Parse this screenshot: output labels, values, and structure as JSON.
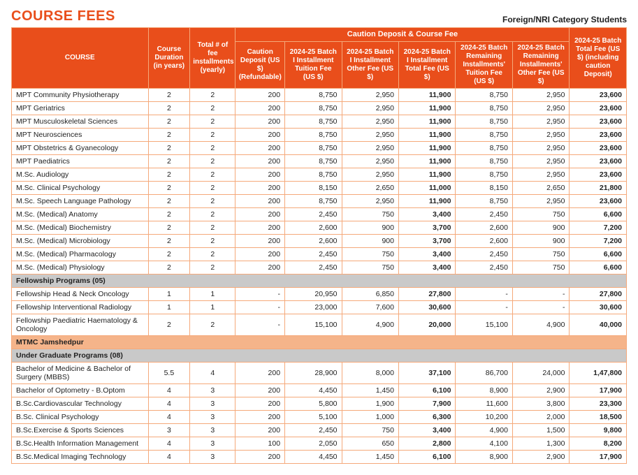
{
  "page": {
    "title": "COURSE FEES",
    "subtitle": "Foreign/NRI Category Students"
  },
  "headers": {
    "course": "COURSE",
    "duration": "Course Duration (in years)",
    "installments": "Total # of fee installments (yearly)",
    "span_caution": "Caution Deposit & Course Fee",
    "caution": "Caution Deposit (US $) (Refundable)",
    "tuition1": "2024-25 Batch I Installment Tuition Fee (US $)",
    "other1": "2024-25 Batch I Installment Other Fee (US $)",
    "total1": "2024-25 Batch I Installment Total Fee (US $)",
    "rem_tuition": "2024-25 Batch Remaining Installments' Tuition Fee (US $)",
    "rem_other": "2024-25 Batch Remaining Installments' Other Fee (US $)",
    "grand": "2024-25 Batch Total Fee (US $) (including caution Deposit)"
  },
  "rows": [
    {
      "type": "data",
      "course": "MPT Community Physiotherapy",
      "dur": "2",
      "inst": "2",
      "caution": "200",
      "t1": "8,750",
      "o1": "2,950",
      "tot1": "11,900",
      "rt": "8,750",
      "ro": "2,950",
      "grand": "23,600"
    },
    {
      "type": "data",
      "course": "MPT Geriatrics",
      "dur": "2",
      "inst": "2",
      "caution": "200",
      "t1": "8,750",
      "o1": "2,950",
      "tot1": "11,900",
      "rt": "8,750",
      "ro": "2,950",
      "grand": "23,600"
    },
    {
      "type": "data",
      "course": "MPT Musculoskeletal Sciences",
      "dur": "2",
      "inst": "2",
      "caution": "200",
      "t1": "8,750",
      "o1": "2,950",
      "tot1": "11,900",
      "rt": "8,750",
      "ro": "2,950",
      "grand": "23,600"
    },
    {
      "type": "data",
      "course": "MPT Neurosciences",
      "dur": "2",
      "inst": "2",
      "caution": "200",
      "t1": "8,750",
      "o1": "2,950",
      "tot1": "11,900",
      "rt": "8,750",
      "ro": "2,950",
      "grand": "23,600"
    },
    {
      "type": "data",
      "course": "MPT Obstetrics & Gyanecology",
      "dur": "2",
      "inst": "2",
      "caution": "200",
      "t1": "8,750",
      "o1": "2,950",
      "tot1": "11,900",
      "rt": "8,750",
      "ro": "2,950",
      "grand": "23,600"
    },
    {
      "type": "data",
      "course": "MPT Paediatrics",
      "dur": "2",
      "inst": "2",
      "caution": "200",
      "t1": "8,750",
      "o1": "2,950",
      "tot1": "11,900",
      "rt": "8,750",
      "ro": "2,950",
      "grand": "23,600"
    },
    {
      "type": "data",
      "course": "M.Sc. Audiology",
      "dur": "2",
      "inst": "2",
      "caution": "200",
      "t1": "8,750",
      "o1": "2,950",
      "tot1": "11,900",
      "rt": "8,750",
      "ro": "2,950",
      "grand": "23,600"
    },
    {
      "type": "data",
      "course": "M.Sc. Clinical Psychology",
      "dur": "2",
      "inst": "2",
      "caution": "200",
      "t1": "8,150",
      "o1": "2,650",
      "tot1": "11,000",
      "rt": "8,150",
      "ro": "2,650",
      "grand": "21,800"
    },
    {
      "type": "data",
      "course": "M.Sc. Speech Language Pathology",
      "dur": "2",
      "inst": "2",
      "caution": "200",
      "t1": "8,750",
      "o1": "2,950",
      "tot1": "11,900",
      "rt": "8,750",
      "ro": "2,950",
      "grand": "23,600"
    },
    {
      "type": "data",
      "course": "M.Sc. (Medical) Anatomy",
      "dur": "2",
      "inst": "2",
      "caution": "200",
      "t1": "2,450",
      "o1": "750",
      "tot1": "3,400",
      "rt": "2,450",
      "ro": "750",
      "grand": "6,600"
    },
    {
      "type": "data",
      "course": "M.Sc. (Medical) Biochemistry",
      "dur": "2",
      "inst": "2",
      "caution": "200",
      "t1": "2,600",
      "o1": "900",
      "tot1": "3,700",
      "rt": "2,600",
      "ro": "900",
      "grand": "7,200"
    },
    {
      "type": "data",
      "course": "M.Sc. (Medical) Microbiology",
      "dur": "2",
      "inst": "2",
      "caution": "200",
      "t1": "2,600",
      "o1": "900",
      "tot1": "3,700",
      "rt": "2,600",
      "ro": "900",
      "grand": "7,200"
    },
    {
      "type": "data",
      "course": "M.Sc. (Medical) Pharmacology",
      "dur": "2",
      "inst": "2",
      "caution": "200",
      "t1": "2,450",
      "o1": "750",
      "tot1": "3,400",
      "rt": "2,450",
      "ro": "750",
      "grand": "6,600"
    },
    {
      "type": "data",
      "course": "M.Sc. (Medical) Physiology",
      "dur": "2",
      "inst": "2",
      "caution": "200",
      "t1": "2,450",
      "o1": "750",
      "tot1": "3,400",
      "rt": "2,450",
      "ro": "750",
      "grand": "6,600"
    },
    {
      "type": "section-gray",
      "label": "Fellowship Programs (05)"
    },
    {
      "type": "data",
      "course": "Fellowship Head & Neck Oncology",
      "dur": "1",
      "inst": "1",
      "caution": "-",
      "t1": "20,950",
      "o1": "6,850",
      "tot1": "27,800",
      "rt": "-",
      "ro": "-",
      "grand": "27,800"
    },
    {
      "type": "data",
      "course": "Fellowship Interventional Radiology",
      "dur": "1",
      "inst": "1",
      "caution": "-",
      "t1": "23,000",
      "o1": "7,600",
      "tot1": "30,600",
      "rt": "-",
      "ro": "-",
      "grand": "30,600"
    },
    {
      "type": "data",
      "course": "Fellowship Paediatric Haematology & Oncology",
      "dur": "2",
      "inst": "2",
      "caution": "-",
      "t1": "15,100",
      "o1": "4,900",
      "tot1": "20,000",
      "rt": "15,100",
      "ro": "4,900",
      "grand": "40,000"
    },
    {
      "type": "section-orange",
      "label": "MTMC Jamshedpur"
    },
    {
      "type": "section-gray",
      "label": "Under Graduate Programs (08)"
    },
    {
      "type": "data",
      "course": "Bachelor of Medicine & Bachelor of Surgery (MBBS)",
      "dur": "5.5",
      "inst": "4",
      "caution": "200",
      "t1": "28,900",
      "o1": "8,000",
      "tot1": "37,100",
      "rt": "86,700",
      "ro": "24,000",
      "grand": "1,47,800"
    },
    {
      "type": "data",
      "course": "Bachelor of Optometry - B.Optom",
      "dur": "4",
      "inst": "3",
      "caution": "200",
      "t1": "4,450",
      "o1": "1,450",
      "tot1": "6,100",
      "rt": "8,900",
      "ro": "2,900",
      "grand": "17,900"
    },
    {
      "type": "data",
      "course": "B.Sc.Cardiovascular Technology",
      "dur": "4",
      "inst": "3",
      "caution": "200",
      "t1": "5,800",
      "o1": "1,900",
      "tot1": "7,900",
      "rt": "11,600",
      "ro": "3,800",
      "grand": "23,300"
    },
    {
      "type": "data",
      "course": "B.Sc. Clinical Psychology",
      "dur": "4",
      "inst": "3",
      "caution": "200",
      "t1": "5,100",
      "o1": "1,000",
      "tot1": "6,300",
      "rt": "10,200",
      "ro": "2,000",
      "grand": "18,500"
    },
    {
      "type": "data",
      "course": "B.Sc.Exercise & Sports Sciences",
      "dur": "3",
      "inst": "3",
      "caution": "200",
      "t1": "2,450",
      "o1": "750",
      "tot1": "3,400",
      "rt": "4,900",
      "ro": "1,500",
      "grand": "9,800"
    },
    {
      "type": "data",
      "course": "B.Sc.Health Information Management",
      "dur": "4",
      "inst": "3",
      "caution": "100",
      "t1": "2,050",
      "o1": "650",
      "tot1": "2,800",
      "rt": "4,100",
      "ro": "1,300",
      "grand": "8,200"
    },
    {
      "type": "data",
      "course": "B.Sc.Medical Imaging Technology",
      "dur": "4",
      "inst": "3",
      "caution": "200",
      "t1": "4,450",
      "o1": "1,450",
      "tot1": "6,100",
      "rt": "8,900",
      "ro": "2,900",
      "grand": "17,900"
    }
  ]
}
